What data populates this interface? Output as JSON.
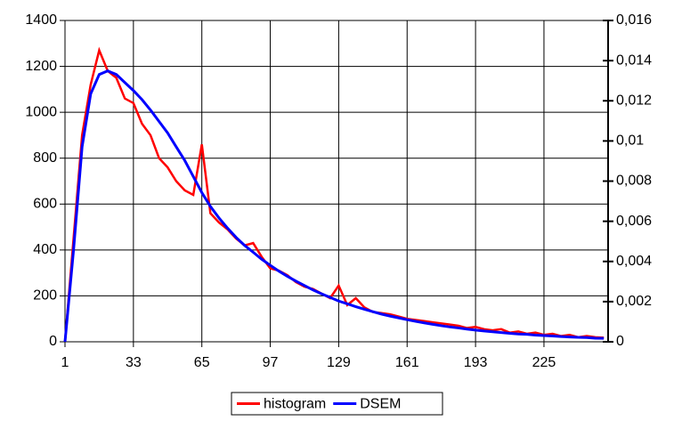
{
  "chart_data": {
    "type": "line",
    "x": [
      1,
      5,
      9,
      13,
      17,
      21,
      25,
      29,
      33,
      37,
      41,
      45,
      49,
      53,
      57,
      61,
      65,
      69,
      73,
      77,
      81,
      85,
      89,
      93,
      97,
      101,
      105,
      109,
      113,
      117,
      121,
      125,
      129,
      133,
      137,
      141,
      145,
      149,
      153,
      157,
      161,
      165,
      169,
      173,
      177,
      181,
      185,
      189,
      193,
      197,
      201,
      205,
      209,
      213,
      217,
      221,
      225,
      229,
      233,
      237,
      241,
      245,
      249,
      253
    ],
    "series": [
      {
        "name": "histogram",
        "color": "#ff0000",
        "axis": "y",
        "values": [
          0,
          450,
          900,
          1120,
          1270,
          1180,
          1150,
          1060,
          1040,
          950,
          900,
          800,
          760,
          700,
          660,
          640,
          860,
          560,
          520,
          490,
          450,
          420,
          430,
          370,
          320,
          310,
          290,
          260,
          240,
          230,
          210,
          190,
          245,
          160,
          190,
          150,
          130,
          125,
          120,
          110,
          100,
          95,
          90,
          85,
          80,
          75,
          70,
          60,
          65,
          55,
          50,
          55,
          40,
          45,
          35,
          40,
          30,
          35,
          25,
          30,
          20,
          25,
          20,
          18
        ]
      },
      {
        "name": "DSEM",
        "color": "#0000ff",
        "axis": "y2",
        "values": [
          0,
          0.00457,
          0.00971,
          0.01234,
          0.01331,
          0.01349,
          0.01331,
          0.01291,
          0.01251,
          0.01206,
          0.01154,
          0.01097,
          0.0104,
          0.00971,
          0.00903,
          0.00823,
          0.00743,
          0.00674,
          0.00617,
          0.00566,
          0.0052,
          0.0048,
          0.00446,
          0.00411,
          0.00381,
          0.00352,
          0.00326,
          0.00302,
          0.0028,
          0.00258,
          0.00239,
          0.00221,
          0.00203,
          0.00189,
          0.00175,
          0.00162,
          0.0015,
          0.00138,
          0.00128,
          0.00119,
          0.0011,
          0.00102,
          0.00094,
          0.00087,
          0.0008,
          0.00074,
          0.00069,
          0.00063,
          0.00058,
          0.00054,
          0.0005,
          0.00046,
          0.00042,
          0.00039,
          0.00037,
          0.00033,
          0.00031,
          0.00029,
          0.00026,
          0.00024,
          0.00022,
          0.00021,
          0.00018,
          0.00017
        ]
      }
    ],
    "xlim": [
      1,
      255
    ],
    "xticks": [
      1,
      33,
      65,
      97,
      129,
      161,
      193,
      225
    ],
    "ylim": [
      0,
      1400
    ],
    "yticks": [
      0,
      200,
      400,
      600,
      800,
      1000,
      1200,
      1400
    ],
    "y2lim": [
      0,
      0.016
    ],
    "y2ticks": [
      0,
      {
        "value": 0.002,
        "label": "0,002"
      },
      {
        "value": 0.004,
        "label": "0,004"
      },
      {
        "value": 0.006,
        "label": "0,006"
      },
      {
        "value": 0.008,
        "label": "0,008"
      },
      {
        "value": 0.01,
        "label": "0,01"
      },
      {
        "value": 0.012,
        "label": "0,012"
      },
      {
        "value": 0.014,
        "label": "0,014"
      },
      {
        "value": 0.016,
        "label": "0,016"
      }
    ],
    "grid": true,
    "legend": "bottom"
  }
}
